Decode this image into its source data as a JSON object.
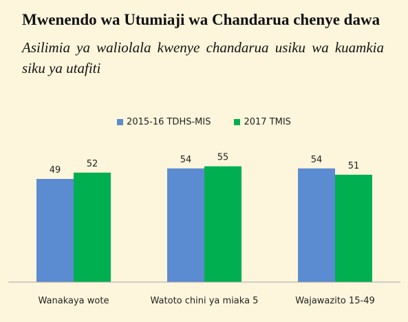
{
  "title": "Mwenendo wa Utumiaji wa Chandarua chenye dawa",
  "subtitle": "Asilimia ya waliolala kwenye chandarua usiku wa kuamkia siku ya utafiti",
  "chart_data": {
    "type": "bar",
    "categories": [
      "Wanakaya wote",
      "Watoto chini ya miaka 5",
      "Wajawazito 15-49"
    ],
    "series": [
      {
        "name": "2015-16 TDHS-MIS",
        "values": [
          49,
          54,
          54
        ],
        "color": "#5b8bd0"
      },
      {
        "name": "2017 TMIS",
        "values": [
          52,
          55,
          51
        ],
        "color": "#00b050"
      }
    ],
    "ylim": [
      0,
      100
    ],
    "legend": "top",
    "grid": false,
    "xlabel": "",
    "ylabel": ""
  }
}
